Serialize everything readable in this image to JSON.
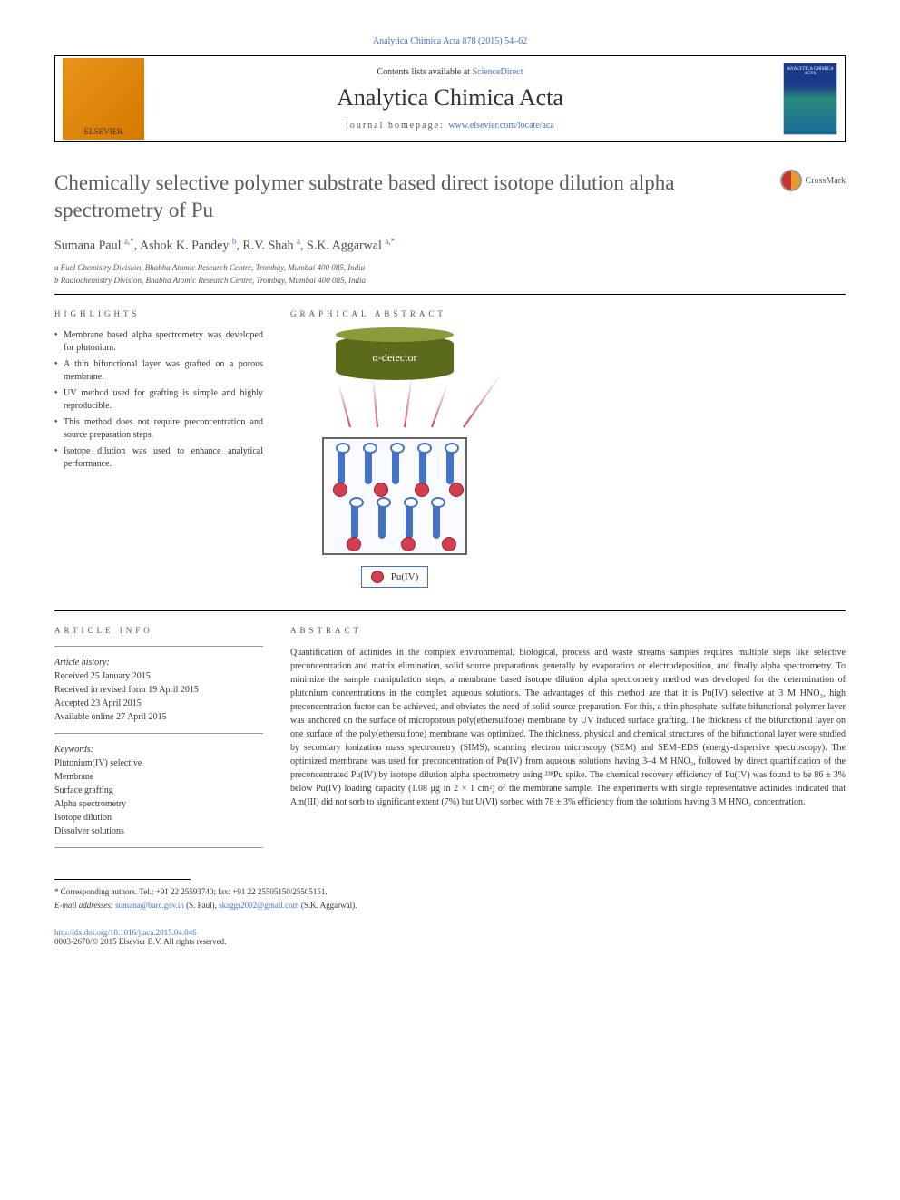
{
  "journal_ref": "Analytica Chimica Acta 878 (2015) 54–62",
  "header": {
    "contents_prefix": "Contents lists available at ",
    "contents_link": "ScienceDirect",
    "journal_name": "Analytica Chimica Acta",
    "homepage_prefix": "journal homepage: ",
    "homepage_link": "www.elsevier.com/locate/aca",
    "publisher_logo": "ELSEVIER",
    "cover_text": "ANALYTICA CHIMICA ACTA"
  },
  "title": "Chemically selective polymer substrate based direct isotope dilution alpha spectrometry of Pu",
  "crossmark": "CrossMark",
  "authors_html": "Sumana Paul <sup>a,*</sup>, Ashok K. Pandey <sup>b</sup>, R.V. Shah <sup>a</sup>, S.K. Aggarwal <sup>a,*</sup>",
  "affiliations": [
    "a Fuel Chemistry Division, Bhabha Atomic Research Centre, Trombay, Mumbai 400 085, India",
    "b Radiochemistry Division, Bhabha Atomic Research Centre, Trombay, Mumbai 400 085, India"
  ],
  "highlights_label": "HIGHLIGHTS",
  "highlights": [
    "Membrane based alpha spectrometry was developed for plutonium.",
    "A thin bifunctional layer was grafted on a porous membrane.",
    "UV method used for grafting is simple and highly reproducible.",
    "This method does not require preconcentration and source preparation steps.",
    "Isotope dilution was used to enhance analytical performance."
  ],
  "graphical_label": "GRAPHICAL ABSTRACT",
  "graphical": {
    "detector_label": "α-detector",
    "legend_label": "Pu(IV)",
    "colors": {
      "detector_body": "#5a6b1a",
      "detector_top": "#8a9b3a",
      "receptor": "#4472c4",
      "pu_ion": "#d04050",
      "box_border": "#666666",
      "box_bg": "#f8faff"
    }
  },
  "article_info_label": "ARTICLE INFO",
  "article_info": {
    "history_label": "Article history:",
    "received": "Received 25 January 2015",
    "revised": "Received in revised form 19 April 2015",
    "accepted": "Accepted 23 April 2015",
    "online": "Available online 27 April 2015",
    "keywords_label": "Keywords:",
    "keywords": [
      "Plutonium(IV) selective",
      "Membrane",
      "Surface grafting",
      "Alpha spectrometry",
      "Isotope dilution",
      "Dissolver solutions"
    ]
  },
  "abstract_label": "ABSTRACT",
  "abstract": "Quantification of actinides in the complex environmental, biological, process and waste streams samples requires multiple steps like selective preconcentration and matrix elimination, solid source preparations generally by evaporation or electrodeposition, and finally alpha spectrometry. To minimize the sample manipulation steps, a membrane based isotope dilution alpha spectrometry method was developed for the determination of plutonium concentrations in the complex aqueous solutions. The advantages of this method are that it is Pu(IV) selective at 3 M HNO₃, high preconcentration factor can be achieved, and obviates the need of solid source preparation. For this, a thin phosphate–sulfate bifunctional polymer layer was anchored on the surface of microporous poly(ethersulfone) membrane by UV induced surface grafting. The thickness of the bifunctional layer on one surface of the poly(ethersulfone) membrane was optimized. The thickness, physical and chemical structures of the bifunctional layer were studied by secondary ionization mass spectrometry (SIMS), scanning electron microscopy (SEM) and SEM–EDS (energy-dispersive spectroscopy). The optimized membrane was used for preconcentration of Pu(IV) from aqueous solutions having 3–4 M HNO₃, followed by direct quantification of the preconcentrated Pu(IV) by isotope dilution alpha spectrometry using ²³⁸Pu spike. The chemical recovery efficiency of Pu(IV) was found to be 86 ± 3% below Pu(IV) loading capacity (1.08 μg in 2 × 1 cm²) of the membrane sample. The experiments with single representative actinides indicated that Am(III) did not sorb to significant extent (7%) but U(VI) sorbed with 78 ± 3% efficiency from the solutions having 3 M HNO₃ concentration.",
  "footer": {
    "corresponding": "* Corresponding authors. Tel.: +91 22 25593740; fax: +91 22 25505150/25505151.",
    "email_prefix": "E-mail addresses: ",
    "email1": "sumana@barc.gov.in",
    "email1_suffix": " (S. Paul), ",
    "email2": "skaggr2002@gmail.com",
    "email2_suffix": " (S.K. Aggarwal).",
    "doi": "http://dx.doi.org/10.1016/j.aca.2015.04.046",
    "copyright": "0003-2670/© 2015 Elsevier B.V. All rights reserved."
  }
}
